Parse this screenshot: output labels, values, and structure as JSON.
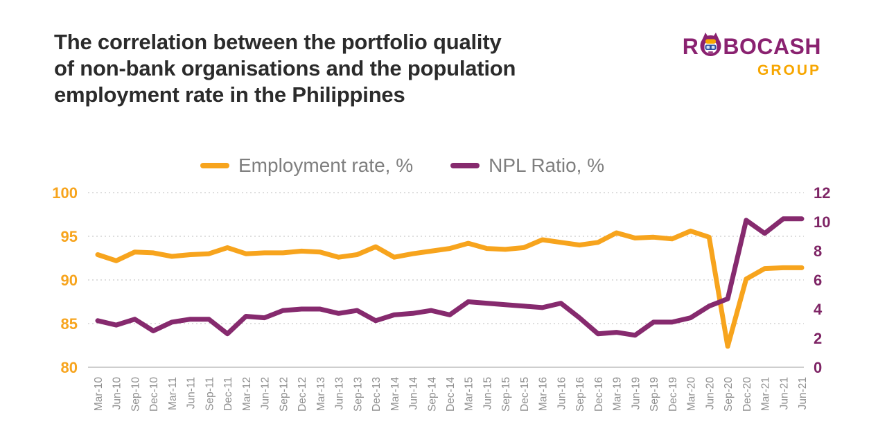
{
  "header": {
    "title": "The correlation between the portfolio quality\nof non-bank organisations and the population\nemployment rate in the Philippines"
  },
  "logo": {
    "brand_prefix": "R",
    "brand_suffix": "BOCASH",
    "subtitle": "GROUP",
    "brand_color": "#8A2270",
    "subtitle_color": "#F7A600"
  },
  "legend": [
    {
      "label": "Employment rate, %",
      "color": "#F7A41D"
    },
    {
      "label": "NPL Ratio, %",
      "color": "#862A6E"
    }
  ],
  "chart_data": {
    "type": "line",
    "title": "Employment rate vs NPL ratio, Philippines, quarterly",
    "legend_position": "top",
    "grid": "horizontal-dotted",
    "categories": [
      "Mar-10",
      "Jun-10",
      "Sep-10",
      "Dec-10",
      "Mar-11",
      "Jun-11",
      "Sep-11",
      "Dec-11",
      "Mar-12",
      "Jun-12",
      "Sep-12",
      "Dec-12",
      "Mar-13",
      "Jun-13",
      "Sep-13",
      "Dec-13",
      "Mar-14",
      "Jun-14",
      "Sep-14",
      "Dec-14",
      "Mar-15",
      "Jun-15",
      "Sep-15",
      "Dec-15",
      "Mar-16",
      "Jun-16",
      "Sep-16",
      "Dec-16",
      "Mar-19",
      "Jun-19",
      "Sep-19",
      "Dec-19",
      "Mar-20",
      "Jun-20",
      "Sep-20",
      "Dec-20",
      "Mar-21",
      "Jun-21",
      "Jun-21"
    ],
    "series": [
      {
        "name": "Employment rate, %",
        "axis": "left",
        "color": "#F7A41D",
        "values": [
          92.9,
          92.2,
          93.2,
          93.1,
          92.7,
          92.9,
          93.0,
          93.7,
          93.0,
          93.1,
          93.1,
          93.3,
          93.2,
          92.6,
          92.9,
          93.8,
          92.6,
          93.0,
          93.3,
          93.6,
          94.2,
          93.6,
          93.5,
          93.7,
          94.6,
          94.3,
          94.0,
          94.3,
          95.4,
          94.8,
          94.9,
          94.7,
          95.6,
          94.9,
          82.4,
          90.1,
          91.3,
          91.4,
          91.4
        ]
      },
      {
        "name": "NPL Ratio, %",
        "axis": "right",
        "color": "#862A6E",
        "values": [
          3.2,
          2.9,
          3.3,
          2.5,
          3.1,
          3.3,
          3.3,
          2.3,
          3.5,
          3.4,
          3.9,
          4.0,
          4.0,
          3.7,
          3.9,
          3.2,
          3.6,
          3.7,
          3.9,
          3.6,
          4.5,
          4.4,
          4.3,
          4.2,
          4.1,
          4.4,
          3.4,
          2.3,
          2.4,
          2.2,
          3.1,
          3.1,
          3.4,
          4.2,
          4.7,
          10.1,
          9.2,
          10.2,
          10.2
        ]
      }
    ],
    "left_axis": {
      "min": 80,
      "max": 100,
      "ticks": [
        100,
        95,
        90,
        85,
        80
      ],
      "color": "#F7A41D"
    },
    "right_axis": {
      "min": 0,
      "max": 12,
      "ticks": [
        12,
        10,
        8,
        6,
        4,
        2,
        0
      ],
      "color": "#7E2465"
    },
    "gridlines": {
      "left_values": [
        100,
        95,
        90,
        85
      ],
      "style": "dotted",
      "color": "#d4d4d4"
    },
    "axis_line_color": "#bdbdbd",
    "x_label_color": "#8f8f8f"
  }
}
